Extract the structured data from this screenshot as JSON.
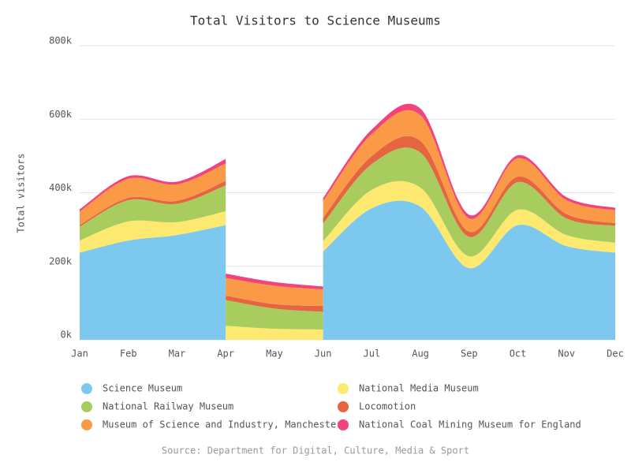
{
  "chart_data": {
    "type": "area",
    "stacked": true,
    "title": "Total Visitors to Science Museums",
    "y_label": "Total visitors",
    "source": "Source: Department for Digital, Culture, Media & Sport",
    "categories": [
      "Jan",
      "Feb",
      "Mar",
      "Apr",
      "May",
      "Jun",
      "Jul",
      "Aug",
      "Sep",
      "Oct",
      "Nov",
      "Dec"
    ],
    "series": [
      {
        "name": "Science Museum",
        "color": "#7cc8ee",
        "values": [
          237000,
          270000,
          285000,
          312000,
          null,
          240000,
          358000,
          362000,
          195000,
          312000,
          255000,
          237000
        ]
      },
      {
        "name": "National Media Museum",
        "color": "#fde870",
        "values": [
          33000,
          52000,
          35000,
          38000,
          30000,
          28000,
          50000,
          52000,
          32000,
          42000,
          30000,
          27000
        ]
      },
      {
        "name": "National Railway Museum",
        "color": "#a9cc5e",
        "values": [
          38000,
          58000,
          50000,
          70000,
          55000,
          48000,
          70000,
          95000,
          53000,
          75000,
          45000,
          46000
        ]
      },
      {
        "name": "Locomotion",
        "color": "#e4653f",
        "values": [
          4000,
          6000,
          8000,
          12000,
          12000,
          16000,
          22000,
          32000,
          14000,
          15000,
          12000,
          7000
        ]
      },
      {
        "name": "Museum of Science and Industry, Manchester",
        "color": "#fb9a46",
        "values": [
          37000,
          52000,
          45000,
          48000,
          50000,
          45000,
          60000,
          70000,
          36000,
          50000,
          38000,
          35000
        ]
      },
      {
        "name": "National Coal Mining Museum for England",
        "color": "#f2437c",
        "values": [
          6000,
          7000,
          7000,
          12000,
          10000,
          8000,
          12000,
          18000,
          10000,
          8000,
          8000,
          7000
        ]
      }
    ],
    "ylim": [
      0,
      800000
    ],
    "yticks": [
      {
        "value": 0,
        "label": "0k"
      },
      {
        "value": 200000,
        "label": "200k"
      },
      {
        "value": 400000,
        "label": "400k"
      },
      {
        "value": 600000,
        "label": "600k"
      },
      {
        "value": 800000,
        "label": "800k"
      }
    ],
    "grid": true,
    "legend": "bottom"
  }
}
